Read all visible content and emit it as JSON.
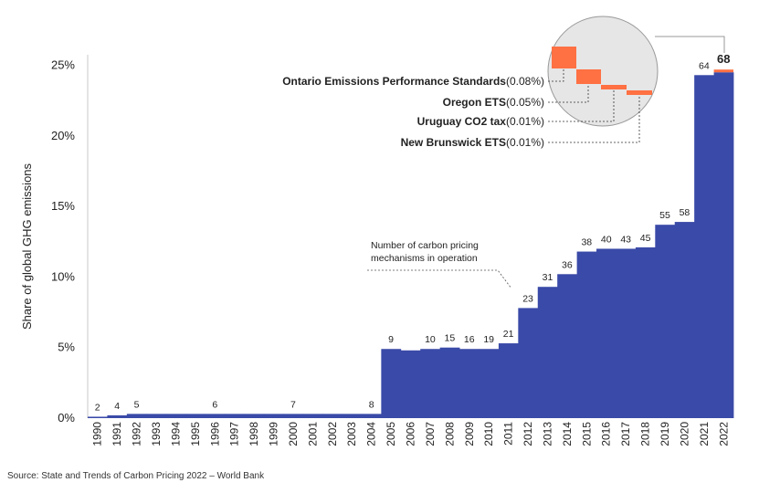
{
  "chart_data": {
    "type": "area",
    "ylabel": "Share of global GHG emissions",
    "ylim": [
      0,
      26
    ],
    "yticks": [
      0,
      5,
      10,
      15,
      20,
      25
    ],
    "ytick_labels": [
      "0%",
      "5%",
      "10%",
      "15%",
      "20%",
      "25%"
    ],
    "categories": [
      "1990",
      "1991",
      "1992",
      "1993",
      "1994",
      "1995",
      "1996",
      "1997",
      "1998",
      "1999",
      "2000",
      "2001",
      "2002",
      "2003",
      "2004",
      "2005",
      "2006",
      "2007",
      "2008",
      "2009",
      "2010",
      "2011",
      "2012",
      "2013",
      "2014",
      "2015",
      "2016",
      "2017",
      "2018",
      "2019",
      "2020",
      "2021",
      "2022"
    ],
    "values": [
      0.1,
      0.2,
      0.3,
      0.3,
      0.3,
      0.3,
      0.3,
      0.3,
      0.3,
      0.3,
      0.3,
      0.3,
      0.3,
      0.3,
      0.3,
      4.9,
      4.8,
      4.9,
      5.0,
      4.9,
      4.9,
      5.3,
      7.8,
      9.3,
      10.2,
      11.8,
      12.0,
      12.0,
      12.1,
      13.7,
      13.9,
      24.3,
      24.5
    ],
    "highlight_top": 0.15,
    "mechanism_counts": [
      {
        "year": "1990",
        "count": "2"
      },
      {
        "year": "1991",
        "count": "4"
      },
      {
        "year": "1992",
        "count": "5"
      },
      {
        "year": "1996",
        "count": "6"
      },
      {
        "year": "2000",
        "count": "7"
      },
      {
        "year": "2004",
        "count": "8"
      },
      {
        "year": "2005",
        "count": "9"
      },
      {
        "year": "2007",
        "count": "10"
      },
      {
        "year": "2008",
        "count": "15"
      },
      {
        "year": "2009",
        "count": "16"
      },
      {
        "year": "2010",
        "count": "19"
      },
      {
        "year": "2011",
        "count": "21"
      },
      {
        "year": "2012",
        "count": "23"
      },
      {
        "year": "2013",
        "count": "31"
      },
      {
        "year": "2014",
        "count": "36"
      },
      {
        "year": "2015",
        "count": "38"
      },
      {
        "year": "2016",
        "count": "40"
      },
      {
        "year": "2017",
        "count": "43"
      },
      {
        "year": "2018",
        "count": "45"
      },
      {
        "year": "2019",
        "count": "55"
      },
      {
        "year": "2020",
        "count": "58"
      },
      {
        "year": "2021",
        "count": "64"
      },
      {
        "year": "2022",
        "count": "68"
      }
    ],
    "annotation": "Number of carbon pricing mechanisms in operation",
    "new_mechanisms": [
      {
        "name": "Ontario Emissions Performance Standards",
        "share": "(0.08%)"
      },
      {
        "name": "Oregon ETS",
        "share": "(0.05%)"
      },
      {
        "name": "Uruguay CO2 tax",
        "share": "(0.01%)"
      },
      {
        "name": "New Brunswick ETS",
        "share": "(0.01%)"
      }
    ],
    "grid": false
  },
  "colors": {
    "area": "#3a4aa8",
    "highlight": "#ff7043",
    "magnifier_fill": "#e6e6e6",
    "magnifier_stroke": "#999999",
    "text": "#222222"
  },
  "source": "Source: State and Trends of Carbon Pricing 2022 – World Bank"
}
